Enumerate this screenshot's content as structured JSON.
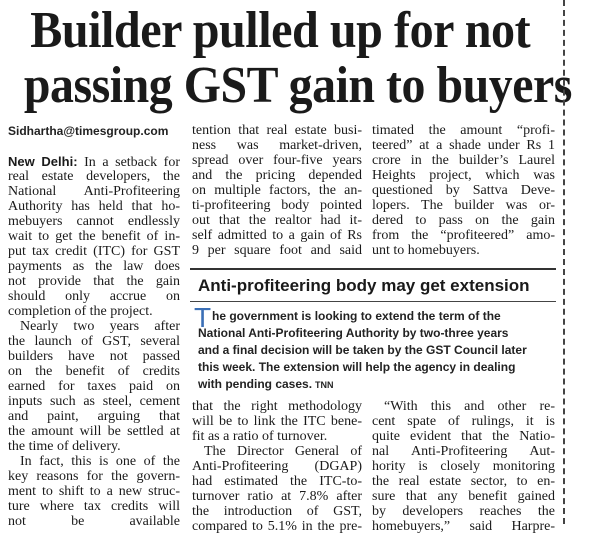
{
  "headline": [
    "Builder pulled up for not",
    "passing GST gain to buyers"
  ],
  "byline": "Sidhartha@timesgroup.com",
  "dateline": "New Delhi:",
  "column_1": [
    [
      "In a setback for",
      "real estate developers, the",
      "National Anti-Profiteering",
      "Authority has held that ho-",
      "mebuyers cannot endlessly",
      "wait to get the benefit of in-",
      "put tax credit (ITC) for GST",
      "payments as the law does",
      "not provide that the gain",
      "should only accrue on",
      "completion of the project."
    ],
    [
      "Nearly two years after",
      "the launch of GST, several",
      "builders have not passed",
      "on the benefit of credits",
      "earned for taxes paid on",
      "inputs such as steel, cement",
      "and paint, arguing that",
      "the amount will be settled at",
      "the time of delivery."
    ],
    [
      "In fact, this is one of the",
      "key reasons for the govern-",
      "ment to shift to a new struc-",
      "ture where tax credits will",
      "not be available"
    ]
  ],
  "column_2_top": [
    "tention that real estate busi-",
    "ness was market-driven,",
    "spread over four-five years",
    "and the pricing depended",
    "on multiple factors, the an-",
    "ti-profiteering body pointed",
    "out that the realtor had it-",
    "self admitted to a gain of Rs",
    "9 per square foot and said"
  ],
  "column_3_top": [
    "timated the amount “profi-",
    "teered” at a shade under Rs 1",
    "crore in the builder’s Laurel",
    "Heights project, which was",
    "questioned by Sattva Deve-",
    "lopers. The builder was or-",
    "dered to pass on the gain",
    "from the “profiteered” amo-",
    "unt to homebuyers."
  ],
  "sidebar": {
    "heading": "Anti-profiteering body may get extension",
    "initial": "T",
    "lines": [
      "he government is looking to extend the term of the",
      "National Anti-Profiteering Authority by two-three years",
      "and a final decision will be taken by the GST Council later",
      "this week. The extension will help the agency in dealing",
      "with pending cases."
    ],
    "credit": "TNN"
  },
  "column_2_bottom": [
    [
      "that the right methodology",
      "will be to link the ITC bene-",
      "fit as a ratio of turnover."
    ],
    [
      "The Director General of",
      "Anti-Profiteering (DGAP)",
      "had estimated the ITC-to-",
      "turnover ratio at 7.8% after",
      "the introduction of GST,",
      "compared to 5.1% in the pre-"
    ]
  ],
  "column_3_bottom": [
    [
      "“With this and other re-",
      "cent spate of rulings, it is",
      "quite evident that the Natio-",
      "nal Anti-Profiteering Aut-",
      "hority is closely monitoring",
      "the real estate sector, to en-",
      "sure that any benefit gained",
      "by developers reaches the",
      "homebuyers,” said Harpre-"
    ]
  ]
}
